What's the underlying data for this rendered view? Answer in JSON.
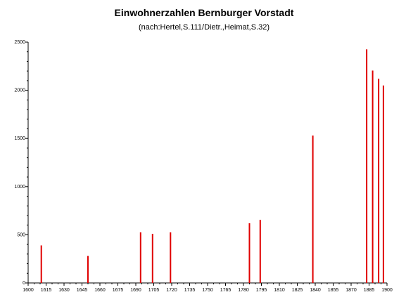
{
  "chart_data": {
    "type": "bar",
    "title": "Einwohnerzahlen Bernburger Vorstadt",
    "subtitle": "(nach:Hertel,S.111/Dietr.,Heimat,S.32)",
    "xlabel": "",
    "ylabel": "",
    "xlim": [
      1600,
      1900
    ],
    "ylim": [
      0,
      2500
    ],
    "x_ticks": [
      1600,
      1615,
      1630,
      1645,
      1660,
      1675,
      1690,
      1705,
      1720,
      1735,
      1750,
      1765,
      1780,
      1795,
      1810,
      1825,
      1840,
      1855,
      1870,
      1885,
      1900
    ],
    "y_ticks": [
      0,
      500,
      1000,
      1500,
      2000,
      2500
    ],
    "grid": false,
    "bar_color": "#e00000",
    "points": [
      {
        "x": 1611,
        "y": 390
      },
      {
        "x": 1650,
        "y": 280
      },
      {
        "x": 1694,
        "y": 525
      },
      {
        "x": 1704,
        "y": 510
      },
      {
        "x": 1719,
        "y": 525
      },
      {
        "x": 1785,
        "y": 620
      },
      {
        "x": 1794,
        "y": 655
      },
      {
        "x": 1838,
        "y": 1530
      },
      {
        "x": 1883,
        "y": 2425
      },
      {
        "x": 1888,
        "y": 2205
      },
      {
        "x": 1893,
        "y": 2120
      },
      {
        "x": 1897,
        "y": 2050
      }
    ]
  }
}
